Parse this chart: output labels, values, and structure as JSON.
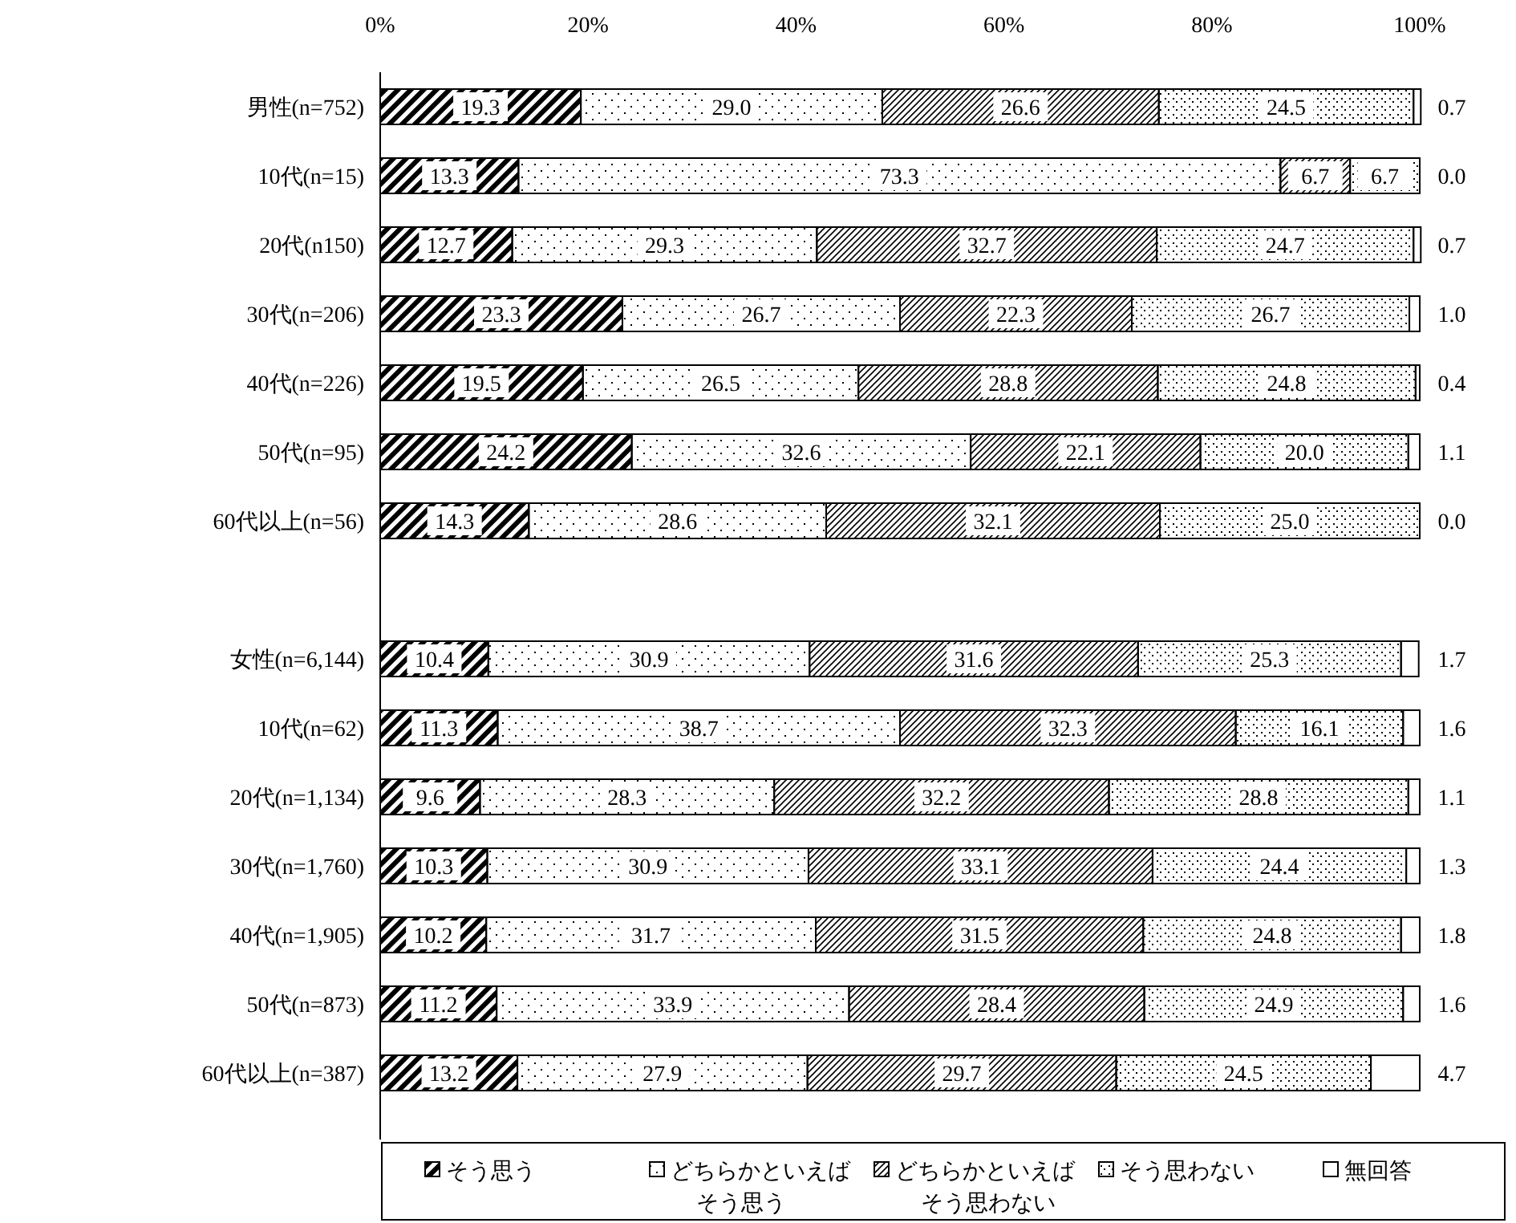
{
  "chart_data": {
    "type": "bar",
    "orientation": "horizontal",
    "stacked": true,
    "categories": [
      "男性(n=752)",
      "10代(n=15)",
      "20代(n150)",
      "30代(n=206)",
      "40代(n=226)",
      "50代(n=95)",
      "60代以上(n=56)",
      null,
      "女性(n=6,144)",
      "10代(n=62)",
      "20代(n=1,134)",
      "30代(n=1,760)",
      "40代(n=1,905)",
      "50代(n=873)",
      "60代以上(n=387)"
    ],
    "xlim": [
      0,
      100
    ],
    "xticks": [
      {
        "value": 0,
        "label": "0%"
      },
      {
        "value": 20,
        "label": "20%"
      },
      {
        "value": 40,
        "label": "40%"
      },
      {
        "value": 60,
        "label": "60%"
      },
      {
        "value": 80,
        "label": "80%"
      },
      {
        "value": 100,
        "label": "100%"
      }
    ],
    "grid": false,
    "legend": "bottom",
    "series": [
      {
        "name": "そう思う",
        "color": "#000000",
        "values": [
          19.3,
          13.3,
          12.7,
          23.3,
          19.5,
          24.2,
          14.3,
          null,
          10.4,
          11.3,
          9.6,
          10.3,
          10.2,
          11.2,
          13.2
        ],
        "value_labels": [
          "19.3",
          "13.3",
          "12.7",
          "23.3",
          "19.5",
          "24.2",
          "14.3",
          null,
          "10.4",
          "11.3",
          "9.6",
          "10.3",
          "10.2",
          "11.2",
          "13.2"
        ]
      },
      {
        "name": "どちらかといえばそう思う",
        "color": "#000000",
        "values": [
          29.0,
          73.3,
          29.3,
          26.7,
          26.5,
          32.6,
          28.6,
          null,
          30.9,
          38.7,
          28.3,
          30.9,
          31.7,
          33.9,
          27.9
        ],
        "value_labels": [
          "29.0",
          "73.3",
          "29.3",
          "26.7",
          "26.5",
          "32.6",
          "28.6",
          null,
          "30.9",
          "38.7",
          "28.3",
          "30.9",
          "31.7",
          "33.9",
          "27.9"
        ]
      },
      {
        "name": "どちらかといえばそう思わない",
        "color": "#000000",
        "values": [
          26.6,
          6.7,
          32.7,
          22.3,
          28.8,
          22.1,
          32.1,
          null,
          31.6,
          32.3,
          32.2,
          33.1,
          31.5,
          28.4,
          29.7
        ],
        "value_labels": [
          "26.6",
          "6.7",
          "32.7",
          "22.3",
          "28.8",
          "22.1",
          "32.1",
          null,
          "31.6",
          "32.3",
          "32.2",
          "33.1",
          "31.5",
          "28.4",
          "29.7"
        ]
      },
      {
        "name": "そう思わない",
        "color": "#000000",
        "values": [
          24.5,
          6.7,
          24.7,
          26.7,
          24.8,
          20.0,
          25.0,
          null,
          25.3,
          16.1,
          28.8,
          24.4,
          24.8,
          24.9,
          24.5
        ],
        "value_labels": [
          "24.5",
          "6.7",
          "24.7",
          "26.7",
          "24.8",
          "20.0",
          "25.0",
          null,
          "25.3",
          "16.1",
          "28.8",
          "24.4",
          "24.8",
          "24.9",
          "24.5"
        ]
      },
      {
        "name": "無回答",
        "color": "#ffffff",
        "values": [
          0.7,
          0.0,
          0.7,
          1.0,
          0.4,
          1.1,
          0.0,
          null,
          1.7,
          1.6,
          1.1,
          1.3,
          1.8,
          1.6,
          4.7
        ],
        "value_labels": [
          "0.7",
          "0.0",
          "0.7",
          "1.0",
          "0.4",
          "1.1",
          "0.0",
          null,
          "1.7",
          "1.6",
          "1.1",
          "1.3",
          "1.8",
          "1.6",
          "4.7"
        ]
      }
    ]
  }
}
